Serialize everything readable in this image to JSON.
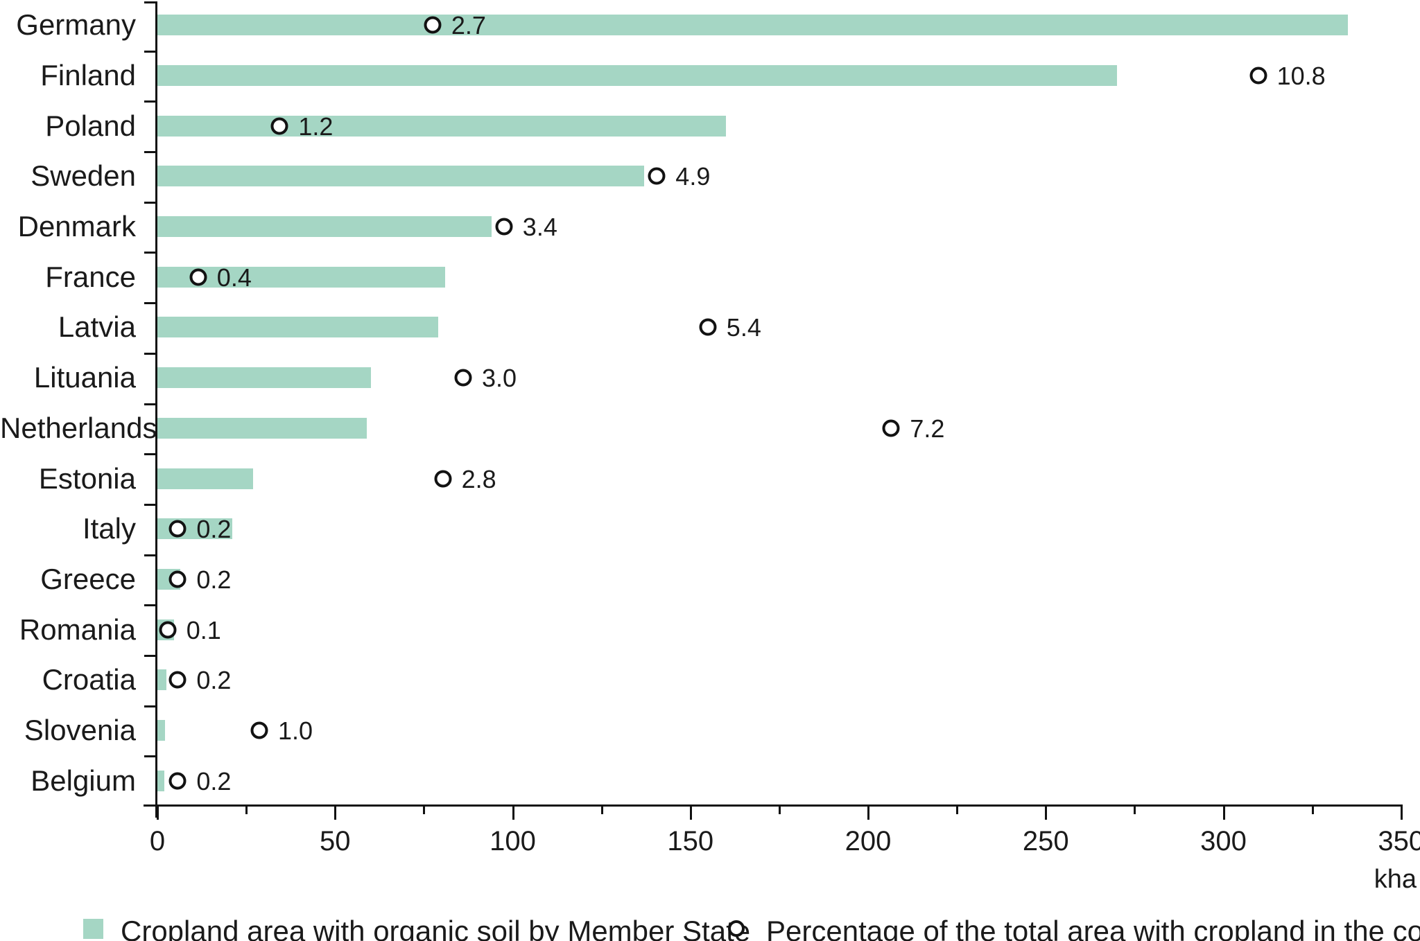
{
  "chart_data": {
    "type": "bar",
    "orientation": "horizontal",
    "title": "",
    "categories": [
      "Germany",
      "Finland",
      "Poland",
      "Sweden",
      "Denmark",
      "France",
      "Latvia",
      "Lituania",
      "Netherlands",
      "Estonia",
      "Italy",
      "Greece",
      "Romania",
      "Croatia",
      "Slovenia",
      "Belgium"
    ],
    "series": [
      {
        "name": "Cropland area with organic soil by Member State",
        "unit": "kha",
        "type": "bar",
        "color": "#a5d6c4",
        "values": [
          335,
          270,
          160,
          137,
          94,
          81,
          79,
          60,
          59,
          27,
          21,
          6.5,
          4.7,
          2.5,
          2.1,
          1.9
        ]
      },
      {
        "name": "Percentage of the total area with cropland in the country",
        "unit": "%",
        "type": "scatter",
        "marker": "open-circle",
        "marker_fill": "#ffffff",
        "marker_stroke": "#121212",
        "values": [
          2.7,
          10.8,
          1.2,
          4.9,
          3.4,
          0.4,
          5.4,
          3.0,
          7.2,
          2.8,
          0.2,
          0.2,
          0.1,
          0.2,
          1.0,
          0.2
        ],
        "labels": [
          "2.7",
          "10.8",
          "1.2",
          "4.9",
          "3.4",
          "0.4",
          "5.4",
          "3.0",
          "7.2",
          "2.8",
          "0.2",
          "0.2",
          "0.1",
          "0.2",
          "1.0",
          "0.2"
        ]
      }
    ],
    "xlabel": "kha",
    "xlim": [
      0,
      350
    ],
    "x_major_ticks": [
      0,
      50,
      100,
      150,
      200,
      250,
      300,
      350
    ],
    "x_minor_ticks": [
      25,
      75,
      125,
      175,
      225,
      275,
      325
    ],
    "secondary_axis_kha_per_percent": 28.7,
    "grid": false,
    "legend_position": "bottom",
    "legend": [
      {
        "swatch": "green-square",
        "label": "Cropland area with organic soil by Member State"
      },
      {
        "swatch": "open-circle",
        "label": "Percentage of the total area with cropland in the country"
      }
    ],
    "axis_color": "#111111",
    "text_color": "#1a1a1a",
    "bar_color": "#a5d6c4"
  }
}
